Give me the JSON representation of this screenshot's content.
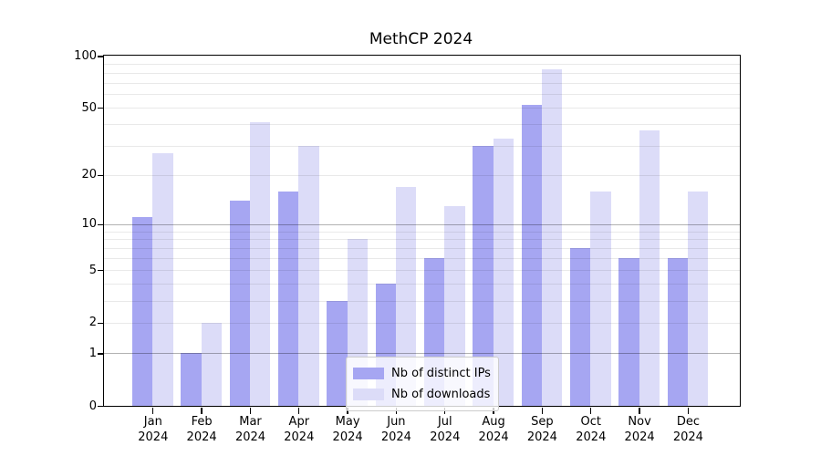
{
  "chart_data": {
    "type": "bar",
    "title": "MethCP 2024",
    "categories": [
      "Jan",
      "Feb",
      "Mar",
      "Apr",
      "May",
      "Jun",
      "Jul",
      "Aug",
      "Sep",
      "Oct",
      "Nov",
      "Dec"
    ],
    "x_year_label": "2024",
    "series": [
      {
        "name": "Nb of distinct IPs",
        "color": "#a6a6f2",
        "values": [
          11,
          1,
          14,
          16,
          3,
          4,
          6,
          30,
          52,
          7,
          6,
          6
        ]
      },
      {
        "name": "Nb of downloads",
        "color": "#dcdcf8",
        "values": [
          27,
          2,
          41,
          30,
          8,
          17,
          13,
          33,
          84,
          16,
          37,
          16
        ]
      }
    ],
    "yscale": "log1p",
    "ylim": [
      0,
      100
    ],
    "yticks": [
      100,
      50,
      20,
      10,
      5,
      2,
      1,
      0
    ],
    "major_gridlines": [
      1,
      10
    ],
    "minor_gridlines": [
      2,
      3,
      4,
      5,
      6,
      7,
      8,
      9,
      20,
      30,
      40,
      50,
      60,
      70,
      80,
      90
    ],
    "grid": true,
    "legend_position": "lower center"
  }
}
